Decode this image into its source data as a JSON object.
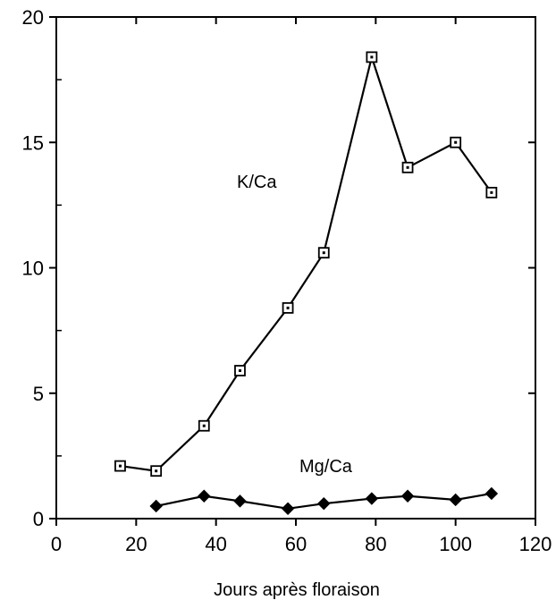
{
  "chart_data": {
    "type": "line",
    "xlabel": "Jours après floraison",
    "ylabel": "",
    "xlim": [
      0,
      120
    ],
    "ylim": [
      0,
      20
    ],
    "x_ticks": [
      0,
      20,
      40,
      60,
      80,
      100,
      120
    ],
    "y_ticks": [
      0,
      5,
      10,
      15,
      20
    ],
    "grid": false,
    "series": [
      {
        "name": "K/Ca",
        "marker": "open-square",
        "points": [
          [
            16,
            2.1
          ],
          [
            25,
            1.9
          ],
          [
            37,
            3.7
          ],
          [
            46,
            5.9
          ],
          [
            58,
            8.4
          ],
          [
            67,
            10.6
          ],
          [
            79,
            18.4
          ],
          [
            88,
            14.0
          ],
          [
            100,
            15.0
          ],
          [
            109,
            13.0
          ]
        ]
      },
      {
        "name": "Mg/Ca",
        "marker": "filled-diamond",
        "points": [
          [
            25,
            0.5
          ],
          [
            37,
            0.9
          ],
          [
            46,
            0.7
          ],
          [
            58,
            0.4
          ],
          [
            67,
            0.6
          ],
          [
            79,
            0.8
          ],
          [
            88,
            0.9
          ],
          [
            100,
            0.75
          ],
          [
            109,
            1.0
          ]
        ]
      }
    ]
  }
}
